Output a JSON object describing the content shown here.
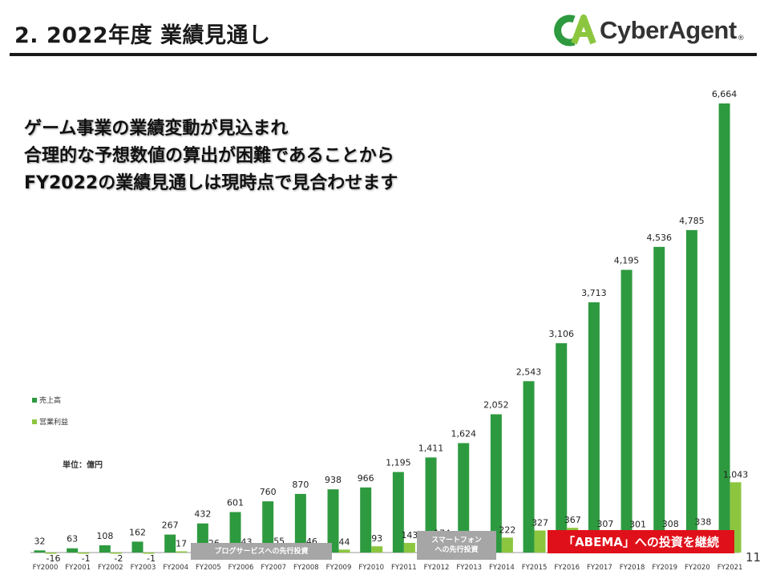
{
  "header": {
    "title": "2. 2022年度 業績見通し",
    "logo_text": "CyberAgent",
    "logo_reg": "®"
  },
  "message": {
    "line1": "ゲーム事業の業績変動が見込まれ",
    "line2": "合理的な予想数値の算出が困難であることから",
    "line3": "FY2022の業績見通しは現時点で見合わせます"
  },
  "legend": {
    "sales": "売上高",
    "profit": "営業利益"
  },
  "unit_label": "単位：億円",
  "annotations": {
    "blog": "ブログサービスへの先行投資",
    "smartphone_line1": "スマートフォン",
    "smartphone_line2": "への先行投資",
    "abema": "「ABEMA」への投資を継続"
  },
  "page_number": "11",
  "colors": {
    "sales": "#2e9a3f",
    "profit": "#8cc63f",
    "abema_red": "#e0101a",
    "annotation_gray": "#a6a6a6"
  },
  "chart_data": {
    "type": "bar",
    "categories": [
      "FY2000",
      "FY2001",
      "FY2002",
      "FY2003",
      "FY2004",
      "FY2005",
      "FY2006",
      "FY2007",
      "FY2008",
      "FY2009",
      "FY2010",
      "FY2011",
      "FY2012",
      "FY2013",
      "FY2014",
      "FY2015",
      "FY2016",
      "FY2017",
      "FY2018",
      "FY2019",
      "FY2020",
      "FY2021"
    ],
    "series": [
      {
        "name": "売上高",
        "values": [
          32,
          63,
          108,
          162,
          267,
          432,
          601,
          760,
          870,
          938,
          966,
          1195,
          1411,
          1624,
          2052,
          2543,
          3106,
          3713,
          4195,
          4536,
          4785,
          6664
        ],
        "labels": [
          "32",
          "63",
          "108",
          "162",
          "267",
          "432",
          "601",
          "760",
          "870",
          "938",
          "966",
          "1,195",
          "1,411",
          "1,624",
          "2,052",
          "2,543",
          "3,106",
          "3,713",
          "4,195",
          "4,536",
          "4,785",
          "6,664"
        ]
      },
      {
        "name": "営業利益",
        "values": [
          -16,
          -1,
          -2,
          -1,
          17,
          26,
          43,
          55,
          46,
          44,
          93,
          143,
          174,
          103,
          222,
          327,
          367,
          307,
          301,
          308,
          338,
          1043
        ],
        "labels": [
          "-16",
          "-1",
          "-2",
          "-1",
          "17",
          "26",
          "43",
          "55",
          "46",
          "44",
          "93",
          "143",
          "174",
          "103",
          "222",
          "327",
          "367",
          "307",
          "301",
          "308",
          "338",
          "1,043"
        ]
      }
    ],
    "ylabel": "単位：億円",
    "ylim": [
      -200,
      6800
    ]
  }
}
